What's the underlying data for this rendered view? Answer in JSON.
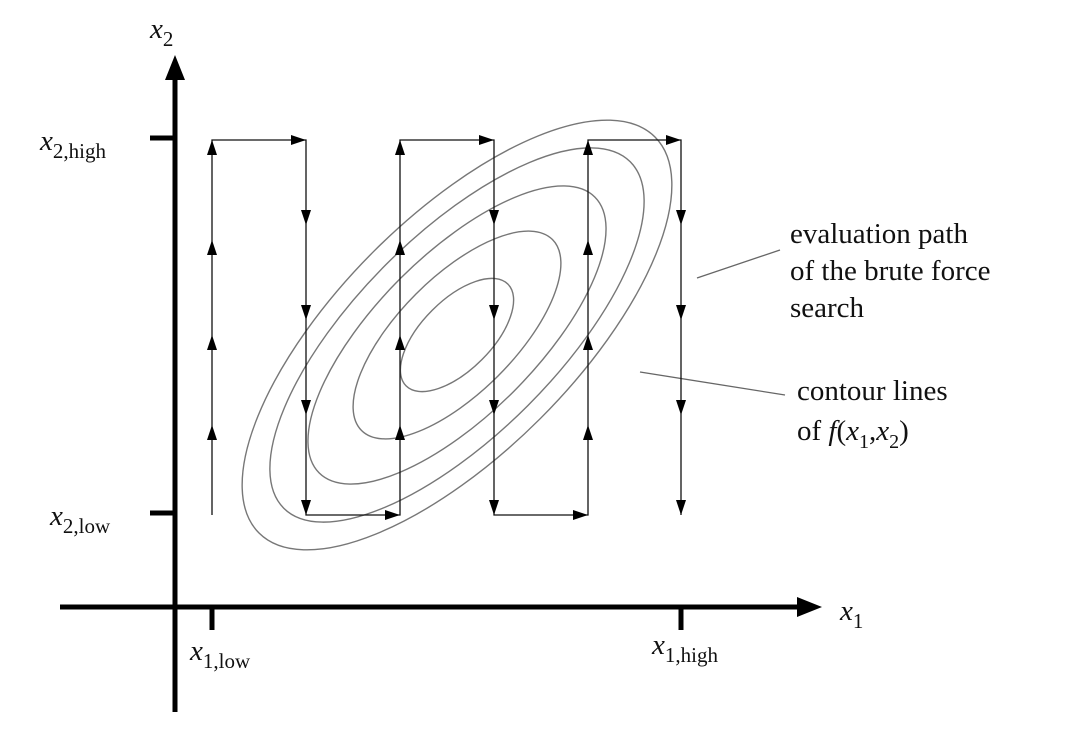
{
  "axes": {
    "y_label": {
      "base": "x",
      "sub": "2"
    },
    "x_label": {
      "base": "x",
      "sub": "1"
    }
  },
  "ticks": {
    "y_high": {
      "base": "x",
      "sub": "2,high"
    },
    "y_low": {
      "base": "x",
      "sub": "2,low"
    },
    "x_low": {
      "base": "x",
      "sub": "1,low"
    },
    "x_high": {
      "base": "x",
      "sub": "1,high"
    }
  },
  "annotations": [
    {
      "lines": [
        [
          {
            "text": "evaluation path"
          }
        ],
        [
          {
            "text": "of the brute force"
          }
        ],
        [
          {
            "text": "search"
          }
        ]
      ]
    },
    {
      "lines": [
        [
          {
            "text": "contour lines"
          }
        ],
        [
          {
            "text": "of "
          },
          {
            "text": "f",
            "italic": true
          },
          {
            "text": "("
          },
          {
            "text": "x",
            "italic": true
          },
          {
            "text": "1",
            "sub": true
          },
          {
            "text": ","
          },
          {
            "text": "x",
            "italic": true
          },
          {
            "text": "2",
            "sub": true
          },
          {
            "text": ")"
          }
        ]
      ]
    }
  ]
}
